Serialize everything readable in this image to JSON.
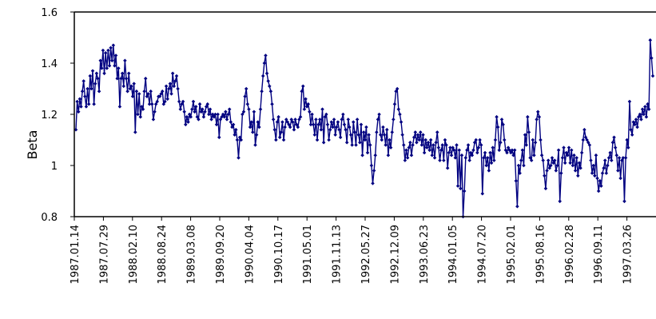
{
  "chart_data": {
    "type": "line",
    "title": "",
    "xlabel": "",
    "ylabel": "Beta",
    "ylim": [
      0.8,
      1.6
    ],
    "yticks": [
      "0.8",
      "1",
      "1.2",
      "1.4",
      "1.6"
    ],
    "grid": false,
    "legend": "none",
    "colors": {
      "series": "#000080",
      "axis": "#000000"
    },
    "xticks": [
      "1987.01.14",
      "1987.07.29",
      "1988.02.10",
      "1988.08.24",
      "1989.03.08",
      "1989.09.20",
      "1990.04.04",
      "1990.10.17",
      "1991.05.01",
      "1991.11.13",
      "1992.05.27",
      "1992.12.09",
      "1993.06.23",
      "1994.01.05",
      "1994.07.20",
      "1995.02.01",
      "1995.08.16",
      "1996.02.28",
      "1996.09.11",
      "1997.03.26"
    ],
    "series": [
      {
        "x_start": "1987.01.14",
        "x_step_days": 7,
        "values": [
          1.14,
          1.25,
          1.21,
          1.26,
          1.23,
          1.29,
          1.33,
          1.27,
          1.23,
          1.3,
          1.24,
          1.35,
          1.3,
          1.37,
          1.24,
          1.32,
          1.36,
          1.34,
          1.29,
          1.41,
          1.38,
          1.45,
          1.36,
          1.44,
          1.38,
          1.45,
          1.39,
          1.46,
          1.41,
          1.47,
          1.39,
          1.43,
          1.34,
          1.38,
          1.23,
          1.34,
          1.36,
          1.31,
          1.41,
          1.34,
          1.29,
          1.36,
          1.3,
          1.31,
          1.27,
          1.32,
          1.13,
          1.29,
          1.2,
          1.28,
          1.19,
          1.23,
          1.22,
          1.29,
          1.34,
          1.27,
          1.28,
          1.24,
          1.29,
          1.24,
          1.18,
          1.21,
          1.24,
          1.25,
          1.27,
          1.27,
          1.28,
          1.29,
          1.24,
          1.25,
          1.31,
          1.26,
          1.3,
          1.32,
          1.28,
          1.36,
          1.31,
          1.33,
          1.35,
          1.3,
          1.25,
          1.22,
          1.24,
          1.25,
          1.21,
          1.16,
          1.19,
          1.17,
          1.2,
          1.19,
          1.22,
          1.25,
          1.21,
          1.23,
          1.19,
          1.18,
          1.24,
          1.21,
          1.22,
          1.19,
          1.21,
          1.23,
          1.24,
          1.2,
          1.22,
          1.18,
          1.2,
          1.19,
          1.2,
          1.16,
          1.2,
          1.11,
          1.18,
          1.19,
          1.2,
          1.19,
          1.21,
          1.18,
          1.2,
          1.22,
          1.17,
          1.15,
          1.16,
          1.12,
          1.14,
          1.1,
          1.03,
          1.11,
          1.1,
          1.2,
          1.21,
          1.27,
          1.3,
          1.24,
          1.22,
          1.15,
          1.17,
          1.13,
          1.21,
          1.08,
          1.12,
          1.17,
          1.15,
          1.22,
          1.29,
          1.35,
          1.4,
          1.43,
          1.36,
          1.33,
          1.31,
          1.29,
          1.24,
          1.18,
          1.14,
          1.1,
          1.17,
          1.19,
          1.11,
          1.13,
          1.17,
          1.1,
          1.15,
          1.18,
          1.17,
          1.16,
          1.15,
          1.18,
          1.17,
          1.14,
          1.18,
          1.16,
          1.15,
          1.18,
          1.19,
          1.29,
          1.31,
          1.22,
          1.26,
          1.23,
          1.24,
          1.21,
          1.16,
          1.2,
          1.16,
          1.12,
          1.18,
          1.1,
          1.16,
          1.18,
          1.14,
          1.22,
          1.09,
          1.19,
          1.2,
          1.16,
          1.1,
          1.14,
          1.17,
          1.15,
          1.18,
          1.12,
          1.15,
          1.17,
          1.14,
          1.11,
          1.18,
          1.2,
          1.16,
          1.14,
          1.09,
          1.18,
          1.15,
          1.12,
          1.08,
          1.17,
          1.13,
          1.08,
          1.18,
          1.12,
          1.09,
          1.16,
          1.04,
          1.13,
          1.1,
          1.15,
          1.05,
          1.12,
          1.08,
          1.0,
          0.93,
          0.98,
          1.04,
          1.13,
          1.18,
          1.2,
          1.12,
          1.1,
          1.15,
          1.12,
          1.08,
          1.14,
          1.04,
          1.1,
          1.07,
          1.13,
          1.18,
          1.24,
          1.29,
          1.3,
          1.22,
          1.2,
          1.17,
          1.12,
          1.08,
          1.02,
          1.06,
          1.03,
          1.07,
          1.09,
          1.04,
          1.08,
          1.11,
          1.13,
          1.09,
          1.12,
          1.1,
          1.13,
          1.08,
          1.12,
          1.05,
          1.1,
          1.07,
          1.09,
          1.06,
          1.1,
          1.04,
          1.08,
          1.03,
          1.09,
          1.13,
          1.07,
          1.02,
          1.06,
          1.08,
          1.02,
          1.1,
          1.08,
          0.99,
          1.05,
          1.07,
          1.04,
          1.07,
          1.06,
          1.03,
          1.08,
          0.92,
          1.06,
          0.91,
          1.04,
          0.8,
          0.9,
          1.03,
          1.06,
          1.08,
          1.02,
          1.05,
          1.04,
          1.06,
          1.09,
          1.1,
          1.05,
          1.07,
          1.1,
          1.08,
          0.89,
          1.03,
          1.05,
          1.0,
          1.03,
          0.98,
          1.05,
          1.01,
          1.07,
          1.02,
          1.1,
          1.19,
          1.15,
          1.06,
          1.09,
          1.18,
          1.16,
          1.1,
          1.06,
          1.05,
          1.07,
          1.06,
          1.05,
          1.06,
          1.04,
          1.06,
          0.94,
          0.84,
          1.0,
          0.97,
          1.02,
          1.06,
          1.0,
          1.12,
          1.08,
          1.19,
          1.13,
          1.03,
          1.02,
          1.1,
          1.04,
          1.09,
          1.18,
          1.21,
          1.19,
          1.1,
          1.04,
          1.02,
          0.96,
          0.91,
          0.98,
          1.02,
          0.99,
          1.0,
          1.03,
          1.01,
          1.02,
          0.98,
          1.0,
          1.06,
          0.86,
          0.97,
          1.03,
          1.07,
          1.01,
          1.05,
          1.04,
          1.07,
          1.01,
          1.06,
          1.0,
          1.04,
          0.98,
          1.03,
          0.96,
          1.01,
          0.99,
          1.05,
          1.1,
          1.14,
          1.11,
          1.1,
          1.09,
          1.08,
          1.02,
          0.97,
          1.0,
          0.96,
          1.04,
          0.95,
          0.9,
          0.94,
          0.92,
          0.97,
          0.99,
          1.02,
          0.97,
          1.0,
          1.03,
          1.05,
          1.02,
          1.09,
          1.11,
          1.07,
          1.04,
          0.98,
          1.03,
          0.95,
          1.02,
          1.03,
          0.86,
          1.03,
          1.1,
          1.07,
          1.25,
          1.14,
          1.12,
          1.17,
          1.16,
          1.18,
          1.15,
          1.19,
          1.2,
          1.18,
          1.22,
          1.2,
          1.23,
          1.19,
          1.24,
          1.22,
          1.49,
          1.42,
          1.35
        ]
      }
    ]
  }
}
